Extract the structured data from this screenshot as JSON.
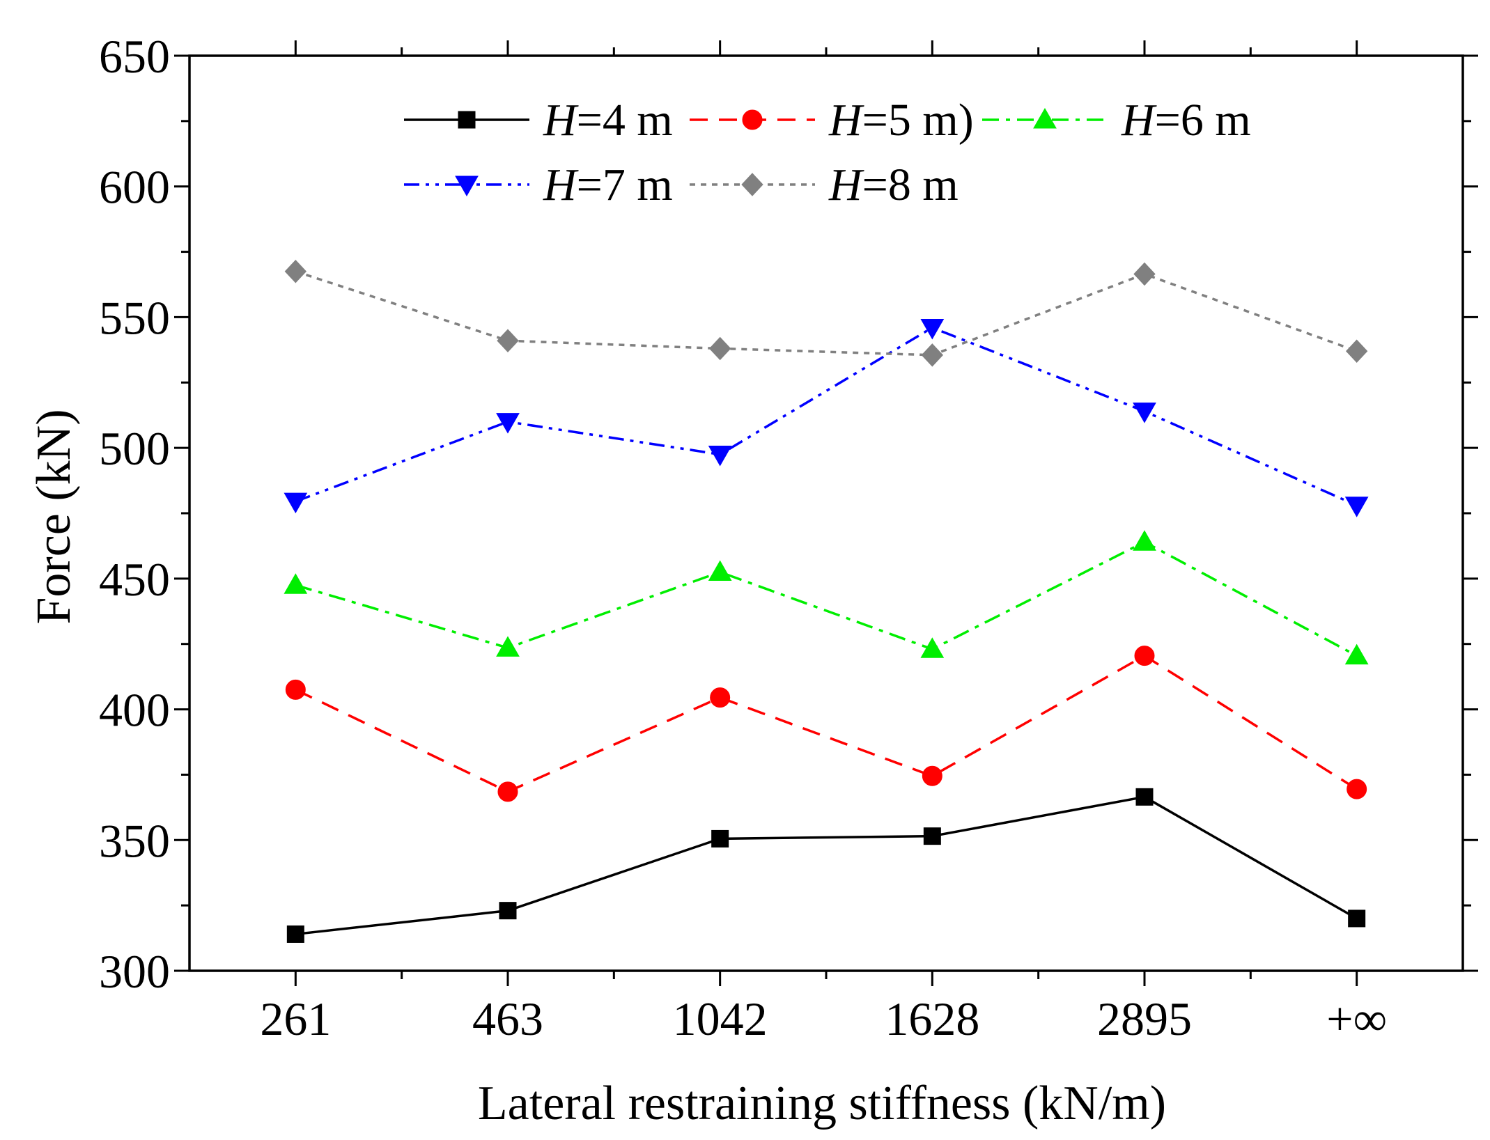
{
  "chart_data": {
    "type": "line",
    "xlabel": "Lateral restraining stiffness (kN/m)",
    "ylabel": "Force (kN)",
    "categories": [
      "261",
      "463",
      "1042",
      "1628",
      "2895",
      "+∞"
    ],
    "ylim": [
      300,
      650
    ],
    "yticks": [
      300,
      350,
      400,
      450,
      500,
      550,
      600,
      650
    ],
    "grid": false,
    "legend_position": "top",
    "series": [
      {
        "name": "H=4 m",
        "name_italic": "H",
        "name_rest": "=4 m",
        "color": "#000000",
        "line_style": "solid",
        "marker": "square",
        "values": [
          314,
          323,
          350.5,
          351.5,
          366.5,
          320
        ]
      },
      {
        "name": "H=5 m)",
        "name_italic": "H",
        "name_rest": "=5 m)",
        "color": "#ff0000",
        "line_style": "dashed",
        "marker": "circle",
        "values": [
          407.5,
          368.5,
          404.5,
          374.5,
          420.5,
          369.5
        ]
      },
      {
        "name": "H=6 m",
        "name_italic": "H",
        "name_rest": "=6 m",
        "color": "#00ee00",
        "line_style": "dash-dot",
        "marker": "triangle-up",
        "values": [
          447.5,
          423.5,
          452.5,
          423,
          464,
          420.5
        ]
      },
      {
        "name": "H=7 m",
        "name_italic": "H",
        "name_rest": "=7 m",
        "color": "#0000ff",
        "line_style": "dash-dot-dot",
        "marker": "triangle-down",
        "values": [
          479.5,
          510,
          497.5,
          546,
          514,
          478
        ]
      },
      {
        "name": "H=8 m",
        "name_italic": "H",
        "name_rest": "=8 m",
        "color": "#808080",
        "line_style": "dotted",
        "marker": "diamond",
        "values": [
          567.5,
          541,
          538,
          535.5,
          566.5,
          537
        ]
      }
    ]
  }
}
